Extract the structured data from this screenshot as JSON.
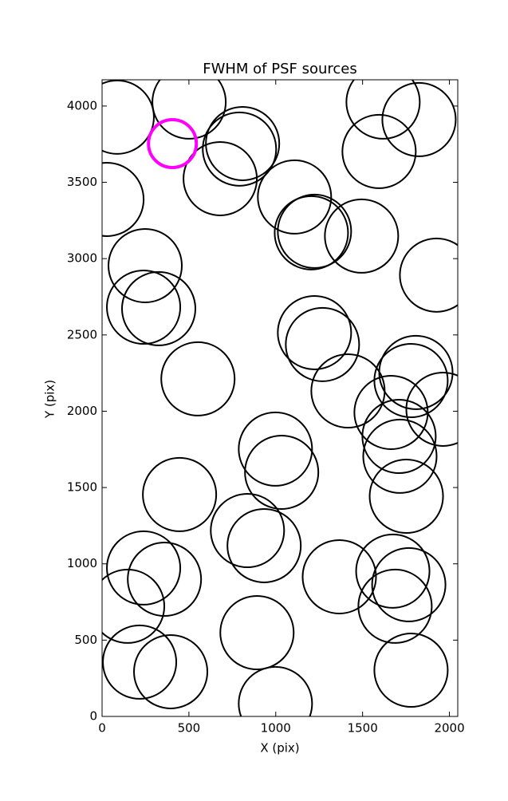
{
  "chart_data": {
    "type": "scatter",
    "title": "FWHM of PSF sources",
    "x_label": "X (pix)",
    "y_label": "Y (pix)",
    "xlim": [
      0,
      2048
    ],
    "ylim": [
      0,
      4172
    ],
    "xticks": [
      0,
      500,
      1000,
      1500,
      2000
    ],
    "yticks": [
      0,
      500,
      1000,
      1500,
      2000,
      2500,
      3000,
      3500,
      4000
    ],
    "series": [
      {
        "color": "#000000",
        "x": [
          87,
          501,
          809,
          791,
          680,
          28,
          1108,
          1205,
          1223,
          1494,
          1618,
          1825,
          1595,
          1926,
          248,
          239,
          326,
          1223,
          1269,
          1416,
          1807,
          1779,
          1963,
          1664,
          1710,
          1715,
          1752,
          552,
          998,
          1034,
          446,
          837,
          933,
          239,
          359,
          147,
          1366,
          1674,
          1766,
          1687,
          216,
          395,
          892,
          998,
          1779
        ],
        "y": [
          3927,
          4026,
          3754,
          3718,
          3524,
          3388,
          3404,
          3169,
          3179,
          3148,
          4026,
          3911,
          3702,
          2892,
          2954,
          2682,
          2672,
          2515,
          2437,
          2133,
          2254,
          2201,
          2013,
          1992,
          1835,
          1705,
          1443,
          2212,
          1752,
          1600,
          1454,
          1218,
          1119,
          973,
          899,
          722,
          915,
          952,
          863,
          722,
          356,
          293,
          549,
          84,
          303
        ]
      },
      {
        "color": "#ff00ff",
        "x": [
          405
        ],
        "y": [
          3754
        ]
      }
    ]
  }
}
